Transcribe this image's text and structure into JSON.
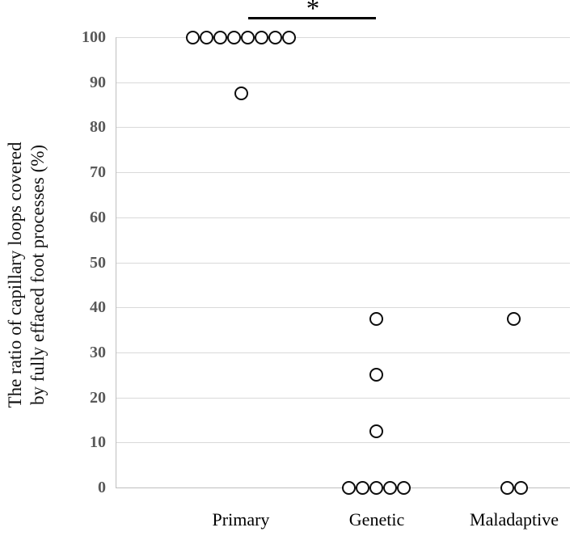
{
  "chart_data": {
    "type": "scatter",
    "subtype": "categorical-dot-plot",
    "title": "",
    "ylabel_lines": [
      "The ratio of capillary loops covered",
      "by fully effaced foot processes (%)"
    ],
    "xlabel": "",
    "categories": [
      "Primary",
      "Genetic",
      "Maladaptive"
    ],
    "series": [
      {
        "name": "Primary",
        "values": [
          100,
          100,
          100,
          100,
          100,
          100,
          100,
          100,
          87.5
        ]
      },
      {
        "name": "Genetic",
        "values": [
          37.5,
          25,
          12.5,
          0,
          0,
          0,
          0,
          0
        ]
      },
      {
        "name": "Maladaptive",
        "values": [
          37.5,
          0,
          0
        ]
      }
    ],
    "y_axis": {
      "min": 0,
      "max": 100,
      "tick_interval": 10,
      "ticks": [
        100,
        90,
        80,
        70,
        60,
        50,
        40,
        30,
        20,
        10,
        0
      ]
    },
    "grid": true,
    "legend": null,
    "significance": {
      "from": "Primary",
      "to": "Genetic",
      "label": "*"
    },
    "marker": {
      "shape": "open-circle",
      "stroke": "#0d0d0d",
      "fill": "#ffffff"
    },
    "colors": {
      "tick_label": "#595959",
      "gridline": "#d9d9d9",
      "axis_line": "#bfbfbf",
      "category_label": "#000000",
      "axis_title": "#111111",
      "significance": "#000000"
    }
  }
}
